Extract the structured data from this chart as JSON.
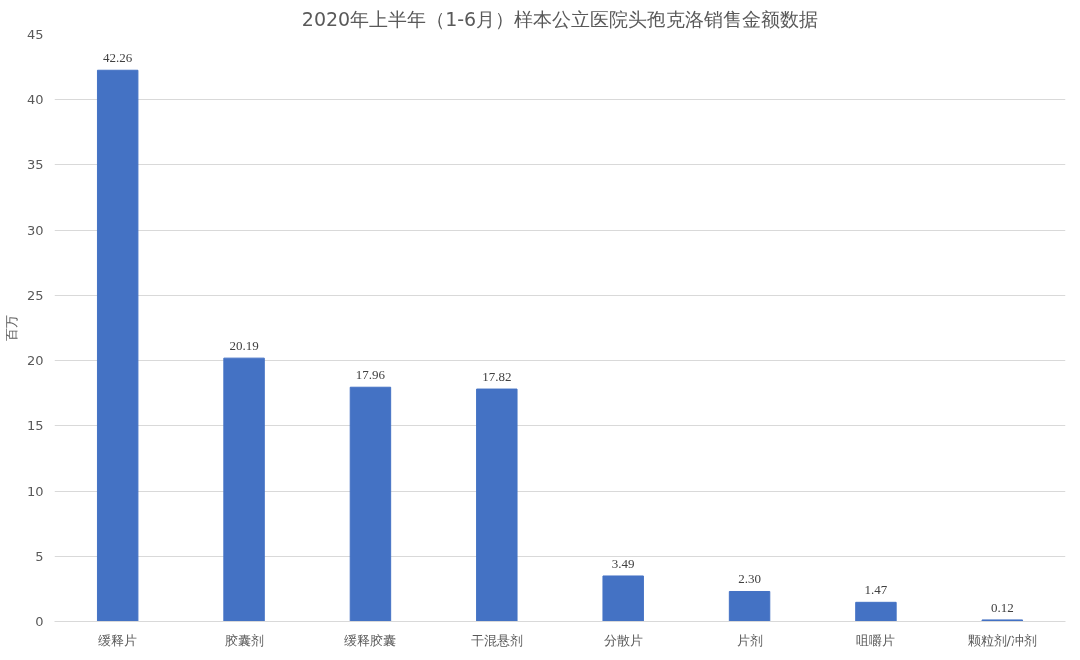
{
  "chart_data": {
    "type": "bar",
    "title": "2020年上半年（1-6月）样本公立医院头孢克洛销售金额数据",
    "ylabel": "百万",
    "categories": [
      "缓释片",
      "胶囊剂",
      "缓释胶囊",
      "干混悬剂",
      "分散片",
      "片剂",
      "咀嚼片",
      "颗粒剂/冲剂"
    ],
    "values": [
      42.26,
      20.19,
      17.96,
      17.82,
      3.49,
      2.3,
      1.47,
      0.12
    ],
    "value_labels": [
      "42.26",
      "20.19",
      "17.96",
      "17.82",
      "3.49",
      "2.30",
      "1.47",
      "0.12"
    ],
    "color": "#4472c4",
    "ylim": [
      0,
      45
    ],
    "yticks": [
      0,
      5,
      10,
      15,
      20,
      25,
      30,
      35,
      40,
      45
    ],
    "grid": "y"
  }
}
